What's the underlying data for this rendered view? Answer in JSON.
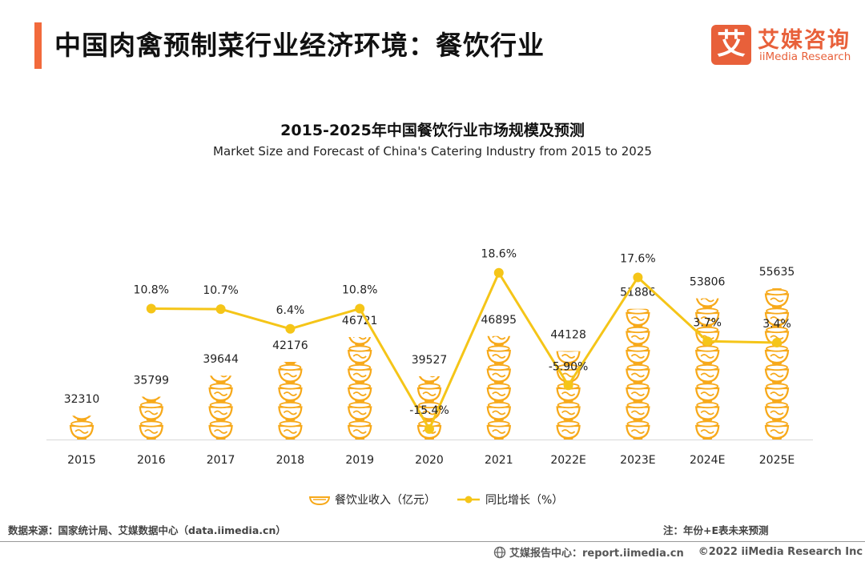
{
  "header": {
    "title": "中国肉禽预制菜行业经济环境：餐饮行业",
    "logo_cn": "艾媒咨询",
    "logo_en": "iiMedia Research",
    "logo_mark": "艾"
  },
  "chart_data": {
    "type": "bar",
    "title": "2015-2025年中国餐饮行业市场规模及预测",
    "subtitle": "Market Size and Forecast of China's Catering Industry from 2015 to 2025",
    "categories": [
      "2015",
      "2016",
      "2017",
      "2018",
      "2019",
      "2020",
      "2021",
      "2022E",
      "2023E",
      "2024E",
      "2025E"
    ],
    "series": [
      {
        "name": "餐饮业收入（亿元）",
        "type": "bar",
        "values": [
          32310,
          35799,
          39644,
          42176,
          46721,
          39527,
          46895,
          44128,
          51886,
          53806,
          55635
        ],
        "labels": [
          "32310",
          "35799",
          "39644",
          "42176",
          "46721",
          "39527",
          "46895",
          "44128",
          "51886",
          "53806",
          "55635"
        ],
        "color": "#f7a91a"
      },
      {
        "name": "同比增长（%）",
        "type": "line",
        "values": [
          null,
          10.8,
          10.7,
          6.4,
          10.8,
          -15.4,
          18.6,
          -5.9,
          17.6,
          3.7,
          3.4
        ],
        "labels": [
          "",
          "10.8%",
          "10.7%",
          "6.4%",
          "10.8%",
          "-15.4%",
          "18.6%",
          "-5.90%",
          "17.6%",
          "3.7%",
          "3.4%"
        ],
        "color": "#f5c518"
      }
    ],
    "grid": false,
    "legend": "bottom"
  },
  "footer": {
    "source": "数据来源：国家统计局、艾媒数据中心（data.iimedia.cn）",
    "note": "注：年份+E表未来预测",
    "report": "艾媒报告中心：report.iimedia.cn",
    "copyright": "©2022  iiMedia Research  Inc"
  }
}
